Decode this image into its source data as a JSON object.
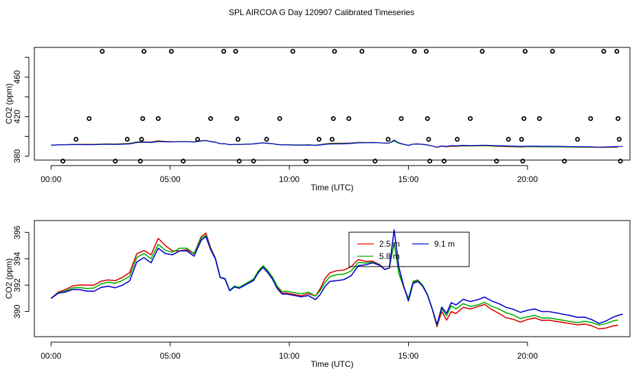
{
  "title": "SPL AIRCOA G  Day 120907  Calibrated Timeseries",
  "colors": {
    "red": "#e00000",
    "green": "#00b000",
    "blue": "#0000d0",
    "magenta": "#d000d0",
    "axis": "#000000"
  },
  "chart_data": [
    {
      "type": "scatter+line",
      "xlabel": "Time (UTC)",
      "ylabel": "CO2 (ppm)",
      "xlim": [
        -0.7,
        24.3
      ],
      "ylim": [
        376,
        490
      ],
      "x_ticks": [
        0,
        5,
        10,
        15,
        20
      ],
      "x_tick_labels": [
        "00:00",
        "05:00",
        "10:00",
        "15:00",
        "20:00"
      ],
      "y_ticks": [
        380,
        400,
        420,
        440,
        460,
        480
      ],
      "y_tick_labels": [
        "380",
        "",
        "420",
        "",
        "460",
        ""
      ],
      "calibration_points": {
        "marker": "open-circle",
        "points": [
          [
            0.5,
            375
          ],
          [
            1.05,
            397
          ],
          [
            1.6,
            418
          ],
          [
            2.15,
            486
          ],
          [
            2.7,
            375
          ],
          [
            3.2,
            397
          ],
          [
            3.75,
            375
          ],
          [
            3.8,
            397
          ],
          [
            3.85,
            418
          ],
          [
            3.9,
            486
          ],
          [
            4.5,
            418
          ],
          [
            5.05,
            486
          ],
          [
            5.55,
            375
          ],
          [
            6.15,
            397
          ],
          [
            6.7,
            418
          ],
          [
            7.25,
            486
          ],
          [
            7.75,
            486
          ],
          [
            7.8,
            418
          ],
          [
            7.85,
            397
          ],
          [
            7.9,
            375
          ],
          [
            8.5,
            375
          ],
          [
            9.05,
            397
          ],
          [
            9.6,
            418
          ],
          [
            10.15,
            486
          ],
          [
            10.7,
            375
          ],
          [
            11.25,
            397
          ],
          [
            11.8,
            397
          ],
          [
            11.85,
            418
          ],
          [
            11.9,
            486
          ],
          [
            12.5,
            418
          ],
          [
            13.05,
            486
          ],
          [
            13.6,
            375
          ],
          [
            14.15,
            397
          ],
          [
            14.7,
            418
          ],
          [
            15.25,
            486
          ],
          [
            15.75,
            486
          ],
          [
            15.8,
            418
          ],
          [
            15.85,
            397
          ],
          [
            15.9,
            375
          ],
          [
            16.5,
            375
          ],
          [
            17.05,
            397
          ],
          [
            17.6,
            418
          ],
          [
            18.1,
            486
          ],
          [
            18.7,
            375
          ],
          [
            19.2,
            397
          ],
          [
            19.75,
            397
          ],
          [
            19.8,
            375
          ],
          [
            19.85,
            418
          ],
          [
            19.9,
            486
          ],
          [
            20.5,
            418
          ],
          [
            21.05,
            486
          ],
          [
            21.55,
            375
          ],
          [
            22.1,
            397
          ],
          [
            22.65,
            418
          ],
          [
            23.2,
            486
          ],
          [
            23.75,
            486
          ],
          [
            23.8,
            418
          ],
          [
            23.85,
            397
          ],
          [
            23.9,
            375
          ]
        ]
      },
      "series": [
        {
          "name": "2.5 m",
          "color": "red"
        },
        {
          "name": "5.8 m",
          "color": "green"
        },
        {
          "name": "9.1 m",
          "color": "blue"
        }
      ]
    },
    {
      "type": "line",
      "xlabel": "Time (UTC)",
      "ylabel": "CO2 (ppm)",
      "xlim": [
        -0.7,
        24.3
      ],
      "ylim": [
        388.1,
        396.9
      ],
      "x_ticks": [
        0,
        5,
        10,
        15,
        20
      ],
      "x_tick_labels": [
        "00:00",
        "05:00",
        "10:00",
        "15:00",
        "20:00"
      ],
      "y_ticks": [
        390,
        392,
        394,
        396
      ],
      "y_tick_labels": [
        "390",
        "392",
        "394",
        "396"
      ],
      "legend": {
        "placement": "top-center",
        "entries": [
          "2.5 m",
          "9.1 m",
          "5.8 m"
        ]
      },
      "base_curve": [
        [
          0.0,
          391.0
        ],
        [
          0.3,
          391.4
        ],
        [
          0.6,
          391.5
        ],
        [
          0.9,
          391.7
        ],
        [
          1.2,
          391.7
        ],
        [
          1.5,
          391.6
        ],
        [
          1.8,
          391.6
        ],
        [
          2.1,
          391.9
        ],
        [
          2.4,
          392.0
        ],
        [
          2.7,
          391.9
        ],
        [
          3.0,
          392.1
        ],
        [
          3.3,
          392.4
        ],
        [
          3.6,
          393.8
        ],
        [
          3.9,
          394.1
        ],
        [
          4.2,
          393.7
        ],
        [
          4.5,
          394.8
        ],
        [
          4.8,
          394.4
        ],
        [
          5.1,
          394.3
        ],
        [
          5.4,
          394.6
        ],
        [
          5.7,
          394.6
        ],
        [
          6.0,
          394.2
        ],
        [
          6.3,
          395.4
        ],
        [
          6.5,
          395.7
        ],
        [
          6.7,
          394.7
        ],
        [
          6.9,
          394.0
        ],
        [
          7.1,
          392.6
        ],
        [
          7.3,
          392.5
        ],
        [
          7.5,
          391.6
        ],
        [
          7.7,
          391.9
        ],
        [
          7.9,
          391.8
        ],
        [
          8.1,
          392.0
        ],
        [
          8.3,
          392.2
        ],
        [
          8.5,
          392.4
        ],
        [
          8.7,
          393.0
        ],
        [
          8.9,
          393.4
        ],
        [
          9.1,
          393.0
        ],
        [
          9.3,
          392.5
        ],
        [
          9.5,
          391.8
        ],
        [
          9.7,
          391.4
        ],
        [
          9.9,
          391.4
        ],
        [
          10.2,
          391.3
        ],
        [
          10.5,
          391.2
        ],
        [
          10.8,
          391.3
        ],
        [
          11.1,
          391.0
        ],
        [
          11.3,
          391.4
        ],
        [
          11.5,
          392.0
        ],
        [
          11.7,
          392.4
        ],
        [
          12.0,
          392.5
        ],
        [
          12.3,
          392.6
        ],
        [
          12.6,
          392.9
        ],
        [
          12.9,
          393.6
        ],
        [
          13.2,
          393.6
        ],
        [
          13.5,
          393.7
        ],
        [
          13.8,
          393.5
        ],
        [
          14.0,
          393.2
        ],
        [
          14.2,
          393.3
        ],
        [
          14.4,
          395.2
        ],
        [
          14.5,
          394.1
        ],
        [
          14.6,
          392.9
        ],
        [
          14.8,
          391.9
        ],
        [
          15.0,
          391.0
        ],
        [
          15.2,
          392.3
        ],
        [
          15.4,
          392.4
        ],
        [
          15.6,
          392.0
        ],
        [
          15.8,
          391.3
        ],
        [
          16.0,
          390.2
        ],
        [
          16.2,
          389.0
        ],
        [
          16.4,
          390.3
        ],
        [
          16.6,
          389.8
        ],
        [
          16.8,
          390.6
        ],
        [
          17.0,
          390.4
        ],
        [
          17.3,
          390.8
        ],
        [
          17.6,
          390.6
        ],
        [
          17.9,
          390.7
        ],
        [
          18.2,
          390.9
        ],
        [
          18.5,
          390.6
        ],
        [
          18.8,
          390.4
        ],
        [
          19.1,
          390.1
        ],
        [
          19.4,
          389.9
        ],
        [
          19.7,
          389.6
        ],
        [
          20.0,
          389.7
        ],
        [
          20.3,
          389.8
        ],
        [
          20.6,
          389.6
        ],
        [
          20.9,
          389.6
        ],
        [
          21.2,
          389.5
        ],
        [
          21.5,
          389.4
        ],
        [
          21.8,
          389.3
        ],
        [
          22.1,
          389.2
        ],
        [
          22.4,
          389.3
        ],
        [
          22.7,
          389.2
        ],
        [
          23.0,
          389.0
        ],
        [
          23.3,
          389.1
        ],
        [
          23.6,
          389.3
        ],
        [
          23.9,
          389.4
        ]
      ],
      "series": [
        {
          "name": "2.5 m",
          "color": "red",
          "x_end": 23.8,
          "offsets": [
            [
              0,
              0.0
            ],
            [
              1.5,
              0.4
            ],
            [
              2.5,
              0.4
            ],
            [
              3.5,
              0.6
            ],
            [
              4.0,
              0.5
            ],
            [
              4.6,
              0.8
            ],
            [
              5.4,
              0.0
            ],
            [
              6.4,
              0.3
            ],
            [
              7.0,
              0.0
            ],
            [
              10.5,
              0.0
            ],
            [
              11.0,
              0.1
            ],
            [
              11.5,
              0.5
            ],
            [
              12.0,
              0.6
            ],
            [
              12.6,
              0.5
            ],
            [
              13.2,
              0.2
            ],
            [
              14.0,
              0.0
            ],
            [
              14.6,
              0.0
            ],
            [
              15.2,
              -0.1
            ],
            [
              16.0,
              0.0
            ],
            [
              16.8,
              -0.6
            ],
            [
              18.0,
              -0.3
            ],
            [
              19.0,
              -0.6
            ],
            [
              20.0,
              -0.3
            ],
            [
              22.0,
              -0.2
            ],
            [
              23.8,
              -0.4
            ]
          ]
        },
        {
          "name": "5.8 m",
          "color": "green",
          "x_end": 23.8,
          "offsets": [
            [
              0,
              0.0
            ],
            [
              2.0,
              0.2
            ],
            [
              3.5,
              0.3
            ],
            [
              4.5,
              0.3
            ],
            [
              5.0,
              0.2
            ],
            [
              6.0,
              0.2
            ],
            [
              7.0,
              0.0
            ],
            [
              11.5,
              0.2
            ],
            [
              12.0,
              0.3
            ],
            [
              13.0,
              0.1
            ],
            [
              14.0,
              0.0
            ],
            [
              15.0,
              0.0
            ],
            [
              16.0,
              0.0
            ],
            [
              17.0,
              -0.2
            ],
            [
              19.0,
              -0.2
            ],
            [
              20.0,
              -0.1
            ],
            [
              23.8,
              0.0
            ]
          ]
        },
        {
          "name": "9.1 m",
          "color": "blue",
          "x_end": 24.0,
          "offsets": [
            [
              0,
              0.0
            ],
            [
              3.0,
              -0.1
            ],
            [
              4.0,
              0.0
            ],
            [
              6.0,
              0.0
            ],
            [
              11.5,
              -0.1
            ],
            [
              12.5,
              -0.2
            ],
            [
              13.5,
              0.0
            ],
            [
              14.2,
              0.0
            ],
            [
              14.4,
              1.0
            ],
            [
              14.7,
              0.2
            ],
            [
              15.0,
              -0.2
            ],
            [
              16.0,
              0.0
            ],
            [
              17.0,
              0.1
            ],
            [
              18.0,
              0.2
            ],
            [
              19.0,
              0.2
            ],
            [
              20.0,
              0.4
            ],
            [
              22.0,
              0.4
            ],
            [
              23.0,
              0.1
            ],
            [
              24.0,
              0.4
            ]
          ]
        }
      ]
    }
  ]
}
